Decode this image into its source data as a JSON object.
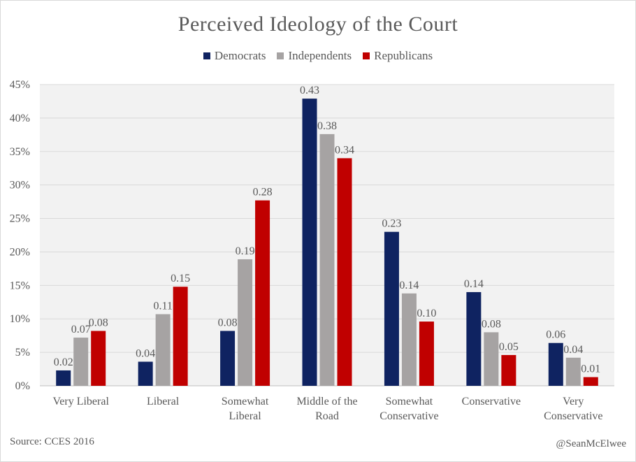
{
  "chart_data": {
    "type": "bar",
    "title": "Perceived Ideology of the Court",
    "categories": [
      [
        "Very Liberal"
      ],
      [
        "Liberal"
      ],
      [
        "Somewhat",
        "Liberal"
      ],
      [
        "Middle of the",
        "Road"
      ],
      [
        "Somewhat",
        "Conservative"
      ],
      [
        "Conservative"
      ],
      [
        "Very",
        "Conservative"
      ]
    ],
    "series": [
      {
        "name": "Democrats",
        "color": "#0f2361",
        "values": [
          0.023,
          0.036,
          0.082,
          0.429,
          0.23,
          0.14,
          0.064
        ],
        "labels": [
          "0.02",
          "0.04",
          "0.08",
          "0.43",
          "0.23",
          "0.14",
          "0.06"
        ]
      },
      {
        "name": "Independents",
        "color": "#a6a3a3",
        "values": [
          0.072,
          0.107,
          0.189,
          0.376,
          0.138,
          0.08,
          0.042
        ],
        "labels": [
          "0.07",
          "0.11",
          "0.19",
          "0.38",
          "0.14",
          "0.08",
          "0.04"
        ]
      },
      {
        "name": "Republicans",
        "color": "#c00000",
        "values": [
          0.082,
          0.148,
          0.277,
          0.34,
          0.096,
          0.046,
          0.013
        ],
        "labels": [
          "0.08",
          "0.15",
          "0.28",
          "0.34",
          "0.10",
          "0.05",
          "0.01"
        ]
      }
    ],
    "y_ticks": [
      "0%",
      "5%",
      "10%",
      "15%",
      "20%",
      "25%",
      "30%",
      "35%",
      "40%",
      "45%"
    ],
    "ylim": [
      0,
      0.45
    ],
    "xlabel": "",
    "ylabel": "",
    "grid": true,
    "legend": "top-center"
  },
  "footer": {
    "source": "Source: CCES 2016",
    "handle": "@SeanMcElwee"
  }
}
